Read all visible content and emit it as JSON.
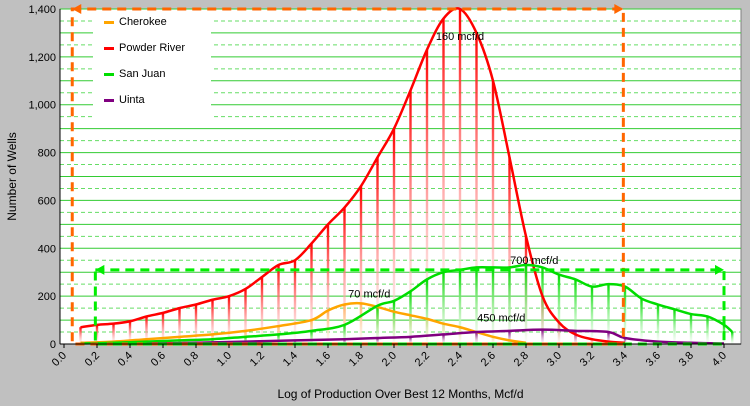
{
  "chart_data": {
    "type": "line",
    "xlabel": "Log of Production Over Best 12 Months, Mcf/d",
    "ylabel": "Number of Wells",
    "xlim": [
      0,
      4.05
    ],
    "ylim": [
      0,
      1400
    ],
    "x_ticks": [
      "0.0",
      "0.2",
      "0.4",
      "0.6",
      "0.8",
      "1.0",
      "1.2",
      "1.4",
      "1.6",
      "1.8",
      "2.0",
      "2.2",
      "2.4",
      "2.6",
      "2.8",
      "3.0",
      "3.2",
      "3.4",
      "3.6",
      "3.8",
      "4.0"
    ],
    "y_ticks": [
      "0",
      "200",
      "400",
      "600",
      "800",
      "1,000",
      "1,200",
      "1,400"
    ],
    "grid": true,
    "legend_position": "top-left",
    "series": [
      {
        "name": "Cherokee",
        "color": "#ffa500",
        "x": [
          0.1,
          0.3,
          0.5,
          0.7,
          0.9,
          1.1,
          1.3,
          1.5,
          1.6,
          1.7,
          1.8,
          1.9,
          2.0,
          2.1,
          2.2,
          2.3,
          2.4,
          2.5,
          2.6,
          2.7,
          2.8
        ],
        "y": [
          5,
          10,
          20,
          30,
          40,
          55,
          75,
          100,
          140,
          165,
          170,
          155,
          135,
          120,
          105,
          85,
          70,
          50,
          30,
          15,
          5
        ]
      },
      {
        "name": "Powder River",
        "color": "#ff0000",
        "x": [
          0.1,
          0.2,
          0.3,
          0.4,
          0.5,
          0.6,
          0.7,
          0.8,
          0.9,
          1.0,
          1.1,
          1.2,
          1.3,
          1.4,
          1.5,
          1.6,
          1.7,
          1.8,
          1.9,
          2.0,
          2.1,
          2.2,
          2.3,
          2.4,
          2.5,
          2.6,
          2.7,
          2.8,
          2.9,
          3.0,
          3.1,
          3.2,
          3.3,
          3.4
        ],
        "y": [
          70,
          80,
          85,
          95,
          115,
          130,
          150,
          165,
          185,
          200,
          230,
          280,
          330,
          350,
          420,
          500,
          570,
          660,
          780,
          900,
          1060,
          1230,
          1360,
          1400,
          1300,
          1100,
          780,
          450,
          200,
          90,
          40,
          20,
          10,
          5
        ]
      },
      {
        "name": "San Juan",
        "color": "#00dd00",
        "x": [
          0.1,
          0.3,
          0.5,
          0.7,
          0.9,
          1.1,
          1.3,
          1.5,
          1.7,
          1.9,
          2.0,
          2.1,
          2.2,
          2.3,
          2.4,
          2.5,
          2.6,
          2.7,
          2.8,
          2.9,
          3.0,
          3.1,
          3.2,
          3.3,
          3.4,
          3.5,
          3.6,
          3.7,
          3.8,
          3.9,
          4.0,
          4.05
        ],
        "y": [
          2,
          5,
          10,
          15,
          20,
          30,
          40,
          55,
          80,
          160,
          180,
          220,
          270,
          300,
          310,
          320,
          320,
          320,
          330,
          320,
          290,
          270,
          240,
          250,
          240,
          190,
          165,
          145,
          125,
          115,
          80,
          50
        ]
      },
      {
        "name": "Uinta",
        "color": "#800080",
        "x": [
          0.5,
          0.8,
          1.1,
          1.4,
          1.7,
          1.9,
          2.1,
          2.3,
          2.5,
          2.7,
          2.9,
          3.1,
          3.3,
          3.4,
          3.6,
          3.8,
          4.0
        ],
        "y": [
          2,
          5,
          10,
          15,
          20,
          25,
          30,
          40,
          50,
          55,
          60,
          55,
          50,
          25,
          10,
          5,
          2
        ]
      }
    ],
    "annotations": [
      {
        "text": "160 mcf/d",
        "x": 2.4,
        "y": 1270
      },
      {
        "text": "70 mcf/d",
        "x": 1.85,
        "y": 195
      },
      {
        "text": "700 mcf/d",
        "x": 2.85,
        "y": 335
      },
      {
        "text": "450 mcf/d",
        "x": 2.65,
        "y": 95
      }
    ],
    "highlight_boxes": [
      {
        "color": "#ff6600",
        "x0": 0.05,
        "x1": 3.39,
        "y0": 0,
        "y1": 1400
      },
      {
        "color": "#00ee00",
        "x0": 0.19,
        "x1": 4.0,
        "y0": 0,
        "y1": 310
      }
    ]
  }
}
